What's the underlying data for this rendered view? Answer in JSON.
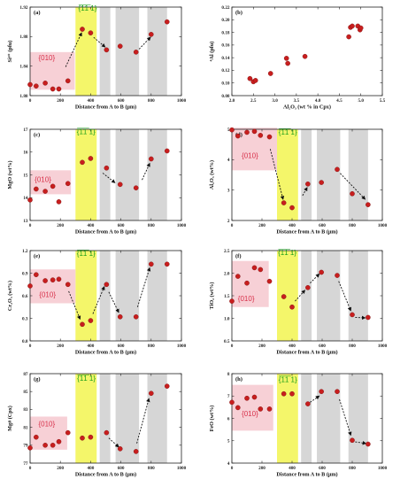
{
  "colors": {
    "point": "#c81e1e",
    "pink_region": "#f7d0d6",
    "yellow_region": "#f4f66a",
    "gray_band": "#d6d6d6",
    "region_010_text": "#d8304a",
    "region_111_text": "#1a9e1a"
  },
  "region_labels": {
    "r010": "{010}",
    "r111": "{̅1̅1̅ 1}"
  },
  "chart_data": [
    {
      "panel": "(a)",
      "type": "scatter",
      "xlabel": "Distance from A to B (μm)",
      "ylabel": "Si⁴⁺ (pfu)",
      "xlim": [
        0,
        1000
      ],
      "ylim": [
        1.8,
        1.92
      ],
      "xticks": [
        "0",
        "200",
        "400",
        "600",
        "800",
        "1000"
      ],
      "yticks": [
        "1.80",
        "1.84",
        "1.88",
        "1.92"
      ],
      "x": [
        0,
        40,
        100,
        150,
        190,
        250,
        345,
        400,
        505,
        595,
        700,
        800,
        905
      ],
      "y": [
        1.815,
        1.813,
        1.817,
        1.809,
        1.809,
        1.82,
        1.89,
        1.885,
        1.862,
        1.867,
        1.859,
        1.883,
        1.9
      ],
      "pink_rect": {
        "x": [
          0,
          295
        ],
        "y": [
          1.808,
          1.859
        ]
      }
    },
    {
      "panel": "(b)",
      "type": "scatter",
      "xlabel": "Al₂O₃ (wt % in Cpx)",
      "ylabel": "⁴Al (pfu)",
      "xlim": [
        2.0,
        5.5
      ],
      "ylim": [
        0.08,
        0.22
      ],
      "xticks": [
        "2.0",
        "2.5",
        "3.0",
        "3.5",
        "4.0",
        "4.5",
        "5.0",
        "5.5"
      ],
      "yticks": [
        "0.08",
        "0.10",
        "0.12",
        "0.14",
        "0.16",
        "0.18",
        "0.20",
        "0.22"
      ],
      "x": [
        2.42,
        2.5,
        2.55,
        2.9,
        3.27,
        3.3,
        3.7,
        4.72,
        4.76,
        4.8,
        4.93,
        4.98,
        5.0
      ],
      "y": [
        0.107,
        0.102,
        0.104,
        0.115,
        0.139,
        0.131,
        0.142,
        0.173,
        0.188,
        0.19,
        0.19,
        0.184,
        0.187
      ]
    },
    {
      "panel": "(c)",
      "type": "scatter",
      "xlabel": "Distance from A to B (μm)",
      "ylabel": "MgO (wt%)",
      "xlim": [
        0,
        1000
      ],
      "ylim": [
        13,
        17
      ],
      "xticks": [
        "0",
        "200",
        "400",
        "600",
        "800",
        "1000"
      ],
      "yticks": [
        "13",
        "14",
        "15",
        "16",
        "17"
      ],
      "x": [
        0,
        40,
        100,
        150,
        190,
        250,
        345,
        400,
        505,
        595,
        700,
        800,
        905
      ],
      "y": [
        13.9,
        14.38,
        14.28,
        14.5,
        13.82,
        14.62,
        15.55,
        15.72,
        15.3,
        14.58,
        14.43,
        15.7,
        16.05
      ],
      "pink_rect": {
        "x": [
          0,
          270
        ],
        "y": [
          14.15,
          15.2
        ]
      }
    },
    {
      "panel": "(d)",
      "type": "scatter",
      "xlabel": "Distance from A to B (μm)",
      "ylabel": "Al₂O₃ (wt%)",
      "xlim": [
        0,
        1000
      ],
      "ylim": [
        2,
        5
      ],
      "xticks": [
        "0",
        "200",
        "400",
        "600",
        "800",
        "1000"
      ],
      "yticks": [
        "2",
        "3",
        "4",
        "5"
      ],
      "x": [
        0,
        40,
        100,
        150,
        190,
        250,
        345,
        400,
        505,
        595,
        700,
        800,
        905
      ],
      "y": [
        4.98,
        4.78,
        4.9,
        4.93,
        4.8,
        4.75,
        2.58,
        2.42,
        3.2,
        3.25,
        3.68,
        2.88,
        2.52
      ],
      "pink_rect": {
        "x": [
          0,
          300
        ],
        "y": [
          3.65,
          5.05
        ]
      }
    },
    {
      "panel": "(e)",
      "type": "scatter",
      "xlabel": "Distance from A to B (μm)",
      "ylabel": "Cr₂O₃ (wt%)",
      "xlim": [
        0,
        1000
      ],
      "ylim": [
        0,
        1.2
      ],
      "xticks": [
        "0",
        "200",
        "400",
        "600",
        "800",
        "1000"
      ],
      "yticks": [
        "0.0",
        "0.3",
        "0.6",
        "0.9",
        "1.2"
      ],
      "x": [
        0,
        40,
        100,
        150,
        190,
        250,
        345,
        400,
        505,
        595,
        700,
        800,
        905
      ],
      "y": [
        0.73,
        0.88,
        0.8,
        0.81,
        0.82,
        0.75,
        0.22,
        0.27,
        0.75,
        0.32,
        0.32,
        1.02,
        1.02
      ],
      "pink_rect": {
        "x": [
          0,
          300
        ],
        "y": [
          0.5,
          0.95
        ]
      }
    },
    {
      "panel": "(f)",
      "type": "scatter",
      "xlabel": "Distance from A to B (μm)",
      "ylabel": "TiO₂ (wt%)",
      "xlim": [
        0,
        1000
      ],
      "ylim": [
        0.5,
        2.5
      ],
      "xticks": [
        "0",
        "200",
        "400",
        "600",
        "800",
        "1000"
      ],
      "yticks": [
        "0.5",
        "1.0",
        "1.5",
        "2.0",
        "2.5"
      ],
      "x": [
        0,
        40,
        100,
        150,
        190,
        250,
        345,
        400,
        505,
        595,
        700,
        800,
        905
      ],
      "y": [
        1.38,
        1.93,
        1.78,
        2.12,
        2.08,
        1.82,
        1.48,
        1.25,
        1.68,
        2.02,
        1.95,
        1.08,
        1.02
      ],
      "pink_rect": {
        "x": [
          0,
          245
        ],
        "y": [
          1.25,
          2.27
        ]
      }
    },
    {
      "panel": "(g)",
      "type": "scatter",
      "xlabel": "Distance from A to B (μm)",
      "ylabel": "Mg# (Cpx)",
      "xlim": [
        0,
        1000
      ],
      "ylim": [
        77,
        87
      ],
      "xticks": [
        "0",
        "200",
        "400",
        "600",
        "800",
        "1000"
      ],
      "yticks": [
        "77",
        "79",
        "81",
        "83",
        "85",
        "87"
      ],
      "x": [
        0,
        40,
        100,
        150,
        190,
        250,
        345,
        400,
        505,
        595,
        700,
        800,
        905
      ],
      "y": [
        78.7,
        79.9,
        79.0,
        79.0,
        79.4,
        80.4,
        79.8,
        79.9,
        80.4,
        78.6,
        78.3,
        84.8,
        85.6
      ],
      "pink_rect": {
        "x": [
          0,
          245
        ],
        "y": [
          78.5,
          82.2
        ]
      }
    },
    {
      "panel": "(h)",
      "type": "scatter",
      "xlabel": "Distance from A to B (μm)",
      "ylabel": "FeO (wt%)",
      "xlim": [
        0,
        1000
      ],
      "ylim": [
        4,
        8
      ],
      "xticks": [
        "0",
        "200",
        "400",
        "600",
        "800",
        "1000"
      ],
      "yticks": [
        "4",
        "5",
        "6",
        "7",
        "8"
      ],
      "x": [
        0,
        40,
        100,
        150,
        190,
        250,
        345,
        400,
        505,
        595,
        700,
        800,
        905
      ],
      "y": [
        6.72,
        6.48,
        6.9,
        6.95,
        6.42,
        6.42,
        7.1,
        7.1,
        6.65,
        7.2,
        7.2,
        5.02,
        4.85
      ],
      "pink_rect": {
        "x": [
          0,
          275
        ],
        "y": [
          5.45,
          7.5
        ]
      }
    }
  ]
}
